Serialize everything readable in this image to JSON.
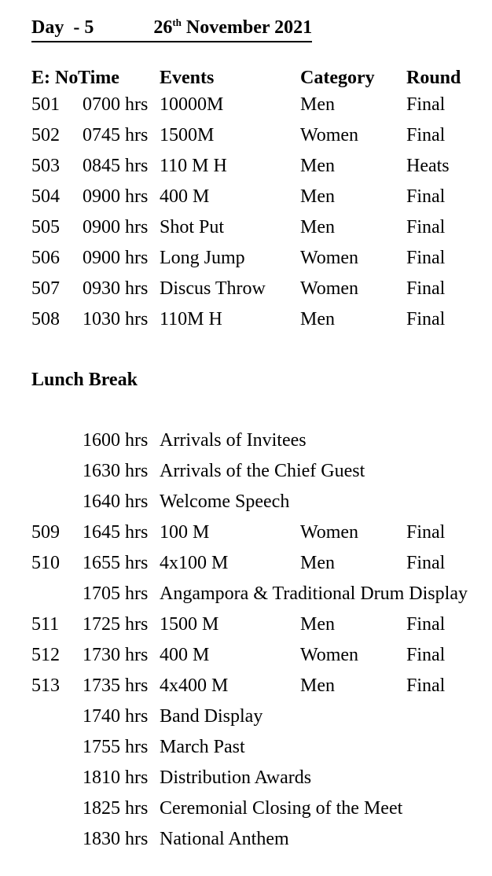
{
  "title": {
    "day_label": "Day  - 5",
    "date_number": "26",
    "date_ordinal": "th",
    "date_rest": " November 2021"
  },
  "columns": {
    "eno": "E: No",
    "time": "Time",
    "events": "Events",
    "category": "Category",
    "round": "Round"
  },
  "morning_rows": [
    {
      "eno": "501",
      "time": "0700 hrs",
      "event": "10000M",
      "category": "Men",
      "round": "Final"
    },
    {
      "eno": "502",
      "time": "0745 hrs",
      "event": "1500M",
      "category": "Women",
      "round": "Final"
    },
    {
      "eno": "503",
      "time": "0845 hrs",
      "event": "110 M H",
      "category": "Men",
      "round": "Heats"
    },
    {
      "eno": "504",
      "time": "0900 hrs",
      "event": "400 M",
      "category": "Men",
      "round": "Final"
    },
    {
      "eno": "505",
      "time": "0900 hrs",
      "event": "Shot Put",
      "category": "Men",
      "round": "Final"
    },
    {
      "eno": "506",
      "time": "0900 hrs",
      "event": "Long Jump",
      "category": "Women",
      "round": "Final"
    },
    {
      "eno": "507",
      "time": "0930 hrs",
      "event": "Discus Throw",
      "category": "Women",
      "round": "Final"
    },
    {
      "eno": "508",
      "time": "1030 hrs",
      "event": "110M H",
      "category": "Men",
      "round": "Final"
    }
  ],
  "lunch_label": "Lunch Break",
  "afternoon_rows": [
    {
      "eno": "",
      "time": "1600 hrs",
      "event": "Arrivals of Invitees",
      "category": "",
      "round": ""
    },
    {
      "eno": "",
      "time": "1630 hrs",
      "event": "Arrivals of the Chief Guest",
      "category": "",
      "round": ""
    },
    {
      "eno": "",
      "time": "1640 hrs",
      "event": "Welcome Speech",
      "category": "",
      "round": ""
    },
    {
      "eno": "509",
      "time": "1645 hrs",
      "event": "100 M",
      "category": "Women",
      "round": "Final"
    },
    {
      "eno": "510",
      "time": "1655 hrs",
      "event": "4x100 M",
      "category": "Men",
      "round": "Final"
    },
    {
      "eno": "",
      "time": "1705 hrs",
      "event": "Angampora & Traditional Drum Display",
      "category": "",
      "round": ""
    },
    {
      "eno": "511",
      "time": "1725 hrs",
      "event": "1500 M",
      "category": "Men",
      "round": "Final"
    },
    {
      "eno": "512",
      "time": "1730 hrs",
      "event": "400 M",
      "category": "Women",
      "round": "Final"
    },
    {
      "eno": "513",
      "time": "1735 hrs",
      "event": "4x400 M",
      "category": "Men",
      "round": "Final"
    },
    {
      "eno": "",
      "time": "1740 hrs",
      "event": "Band Display",
      "category": "",
      "round": ""
    },
    {
      "eno": "",
      "time": "1755 hrs",
      "event": "March Past",
      "category": "",
      "round": ""
    },
    {
      "eno": "",
      "time": "1810 hrs",
      "event": "Distribution Awards",
      "category": "",
      "round": ""
    },
    {
      "eno": "",
      "time": "1825 hrs",
      "event": "Ceremonial Closing of the Meet",
      "category": "",
      "round": ""
    },
    {
      "eno": "",
      "time": "1830 hrs",
      "event": "National Anthem",
      "category": "",
      "round": ""
    }
  ],
  "colors": {
    "text": "#000000",
    "background": "#ffffff"
  }
}
